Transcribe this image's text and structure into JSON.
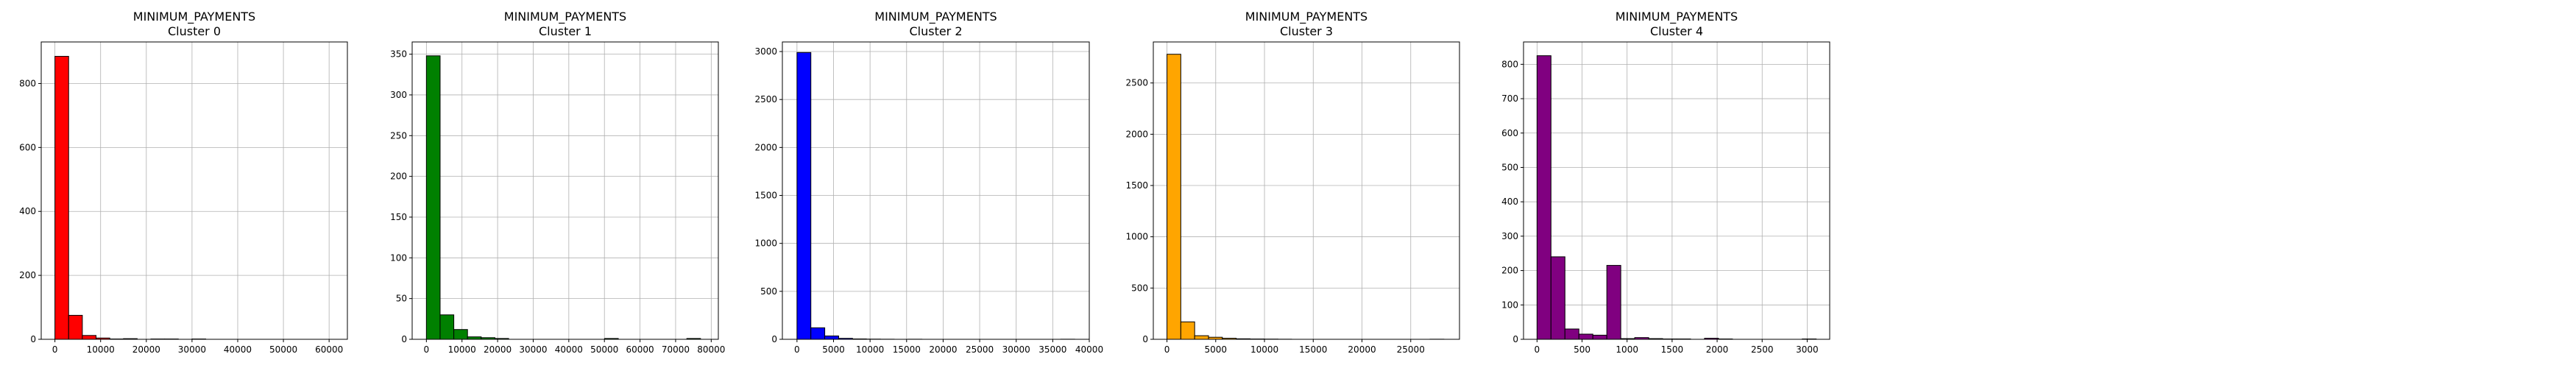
{
  "chart_data": [
    {
      "type": "bar",
      "title": "MINIMUM_PAYMENTS",
      "subtitle": "Cluster 0",
      "color": "#ff0000",
      "grid": true,
      "xlim": [
        -3000,
        64000
      ],
      "ylim": [
        0,
        930
      ],
      "xticks": [
        0,
        10000,
        20000,
        30000,
        40000,
        50000,
        60000
      ],
      "xtick_labels": [
        "0",
        "10000",
        "20000",
        "30000",
        "40000",
        "50000",
        "60000"
      ],
      "yticks": [
        0,
        200,
        400,
        600,
        800
      ],
      "ytick_labels": [
        "0",
        "200",
        "400",
        "600",
        "800"
      ],
      "bin_start": 0,
      "bin_width": 3000,
      "values": [
        885,
        75,
        12,
        4,
        1,
        2,
        0,
        1,
        1,
        0,
        1,
        0,
        0,
        0,
        0,
        0,
        0,
        0,
        0,
        0
      ]
    },
    {
      "type": "bar",
      "title": "MINIMUM_PAYMENTS",
      "subtitle": "Cluster 1",
      "color": "#008000",
      "grid": true,
      "xlim": [
        -4000,
        82000
      ],
      "ylim": [
        0,
        365
      ],
      "xticks": [
        0,
        10000,
        20000,
        30000,
        40000,
        50000,
        60000,
        70000,
        80000
      ],
      "xtick_labels": [
        "0",
        "10000",
        "20000",
        "30000",
        "40000",
        "50000",
        "60000",
        "70000",
        "80000"
      ],
      "yticks": [
        0,
        50,
        100,
        150,
        200,
        250,
        300,
        350
      ],
      "ytick_labels": [
        "0",
        "50",
        "100",
        "150",
        "200",
        "250",
        "300",
        "350"
      ],
      "bin_start": 0,
      "bin_width": 3850,
      "values": [
        348,
        30,
        12,
        3,
        2,
        1,
        0,
        0,
        0,
        0,
        0,
        0,
        0,
        1,
        0,
        0,
        0,
        0,
        0,
        1
      ]
    },
    {
      "type": "bar",
      "title": "MINIMUM_PAYMENTS",
      "subtitle": "Cluster 2",
      "color": "#0000ff",
      "grid": true,
      "xlim": [
        -2000,
        40000
      ],
      "ylim": [
        0,
        3100
      ],
      "xticks": [
        0,
        5000,
        10000,
        15000,
        20000,
        25000,
        30000,
        35000,
        40000
      ],
      "xtick_labels": [
        "0",
        "5000",
        "10000",
        "15000",
        "20000",
        "25000",
        "30000",
        "35000",
        "40000"
      ],
      "yticks": [
        0,
        500,
        1000,
        1500,
        2000,
        2500,
        3000
      ],
      "ytick_labels": [
        "0",
        "500",
        "1000",
        "1500",
        "2000",
        "2500",
        "3000"
      ],
      "bin_start": 0,
      "bin_width": 1900,
      "values": [
        2990,
        120,
        35,
        10,
        4,
        2,
        1,
        0,
        1,
        0,
        0,
        0,
        0,
        0,
        0,
        0,
        0,
        0,
        0,
        1
      ]
    },
    {
      "type": "bar",
      "title": "MINIMUM_PAYMENTS",
      "subtitle": "Cluster 3",
      "color": "#ffa500",
      "grid": true,
      "xlim": [
        -1400,
        30000
      ],
      "ylim": [
        0,
        2900
      ],
      "xticks": [
        0,
        5000,
        10000,
        15000,
        20000,
        25000
      ],
      "xtick_labels": [
        "0",
        "5000",
        "10000",
        "15000",
        "20000",
        "25000"
      ],
      "yticks": [
        0,
        500,
        1000,
        1500,
        2000,
        2500
      ],
      "ytick_labels": [
        "0",
        "500",
        "1000",
        "1500",
        "2000",
        "2500"
      ],
      "bin_start": 0,
      "bin_width": 1420,
      "values": [
        2780,
        170,
        35,
        20,
        10,
        5,
        3,
        2,
        1,
        0,
        0,
        0,
        0,
        0,
        0,
        0,
        0,
        0,
        0,
        1
      ]
    },
    {
      "type": "bar",
      "title": "MINIMUM_PAYMENTS",
      "subtitle": "Cluster 4",
      "color": "#800080",
      "grid": true,
      "xlim": [
        -150,
        3250
      ],
      "ylim": [
        0,
        865
      ],
      "xticks": [
        0,
        500,
        1000,
        1500,
        2000,
        2500,
        3000
      ],
      "xtick_labels": [
        "0",
        "500",
        "1000",
        "1500",
        "2000",
        "2500",
        "3000"
      ],
      "yticks": [
        0,
        100,
        200,
        300,
        400,
        500,
        600,
        700,
        800
      ],
      "ytick_labels": [
        "0",
        "100",
        "200",
        "300",
        "400",
        "500",
        "600",
        "700",
        "800"
      ],
      "bin_start": 0,
      "bin_width": 155,
      "values": [
        825,
        240,
        30,
        15,
        12,
        215,
        2,
        5,
        2,
        1,
        1,
        0,
        3,
        1,
        0,
        0,
        0,
        0,
        0,
        1
      ]
    }
  ]
}
